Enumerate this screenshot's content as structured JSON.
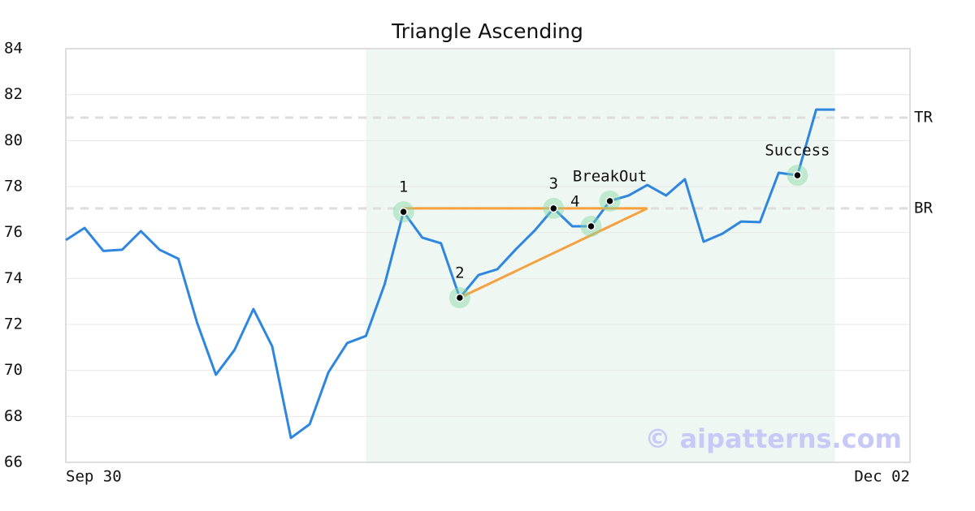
{
  "chart_data": {
    "type": "line",
    "title": "Triangle Ascending",
    "x": [
      0,
      1,
      2,
      3,
      4,
      5,
      6,
      7,
      8,
      9,
      10,
      11,
      12,
      13,
      14,
      15,
      16,
      17,
      18,
      19,
      20,
      21,
      22,
      23,
      24,
      25,
      26,
      27,
      28,
      29,
      30,
      31,
      32,
      33,
      34,
      35,
      36,
      37,
      38,
      39,
      40,
      41
    ],
    "values": [
      75.67,
      76.2,
      75.2,
      75.25,
      76.06,
      75.25,
      74.86,
      72.07,
      69.81,
      70.9,
      72.67,
      71.05,
      67.06,
      67.66,
      69.92,
      71.19,
      71.5,
      73.76,
      76.9,
      75.78,
      75.53,
      73.16,
      74.15,
      74.4,
      75.28,
      76.09,
      77.05,
      76.27,
      76.27,
      77.37,
      77.61,
      78.07,
      77.61,
      78.32,
      75.6,
      75.95,
      76.48,
      76.45,
      78.6,
      78.49,
      81.35,
      81.35
    ],
    "color": "#2e86de",
    "xlim": [
      0,
      45
    ],
    "xticks": [
      {
        "value": 0,
        "label": "Sep 30"
      },
      {
        "value": 45,
        "label": "Dec 02"
      }
    ],
    "ylim": [
      66,
      84
    ],
    "yticks": [
      66,
      68,
      70,
      72,
      74,
      76,
      78,
      80,
      82,
      84
    ],
    "grid": true,
    "shaded_region": {
      "x": [
        16,
        41
      ],
      "color": "#eef7f2"
    },
    "levels": [
      {
        "label": "TR",
        "value": 81
      },
      {
        "label": "BR",
        "value": 77.05
      }
    ],
    "pattern_lines": {
      "color": "#f7a040",
      "lines": [
        {
          "x": [
            18,
            31
          ],
          "y": [
            77.05,
            77.05
          ]
        },
        {
          "x": [
            21,
            31
          ],
          "y": [
            73.16,
            77.05
          ]
        }
      ]
    },
    "points": [
      {
        "label": "1",
        "x": 18,
        "y": 76.9,
        "label_position": "above"
      },
      {
        "label": "2",
        "x": 21,
        "y": 73.16,
        "label_position": "above"
      },
      {
        "label": "3",
        "x": 26,
        "y": 77.05,
        "label_position": "above"
      },
      {
        "label": "4",
        "x": 28,
        "y": 76.27,
        "label_position": "left"
      },
      {
        "label": "BreakOut",
        "x": 29,
        "y": 77.37,
        "label_position": "above"
      },
      {
        "label": "Success",
        "x": 39,
        "y": 78.49,
        "label_position": "above"
      }
    ],
    "watermark": "© aipatterns.com"
  }
}
